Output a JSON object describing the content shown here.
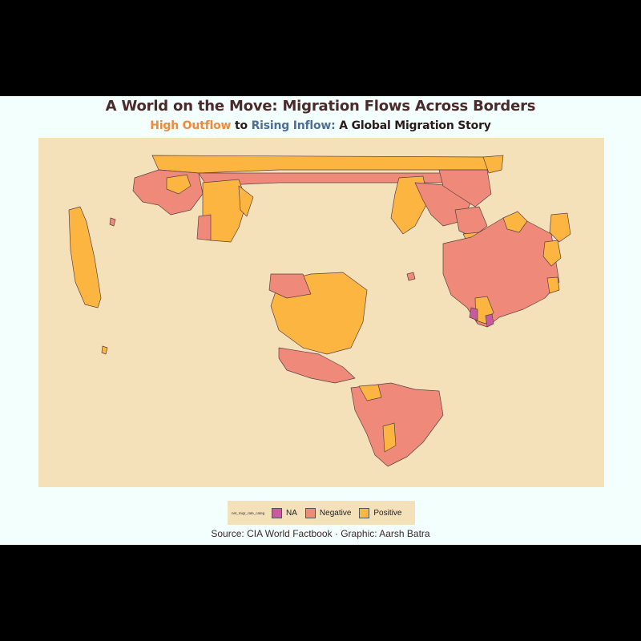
{
  "title": "A World on the Move: Migration Flows Across Borders",
  "subtitle": {
    "outflow_label": "High Outflow",
    "connector": "to",
    "inflow_label": "Rising Inflow:",
    "rest": "A Global Migration Story"
  },
  "legend": {
    "title": "net_migr_rate_categ",
    "items": [
      {
        "label": "NA",
        "color": "#c85aa0"
      },
      {
        "label": "Negative",
        "color": "#ef8a7a"
      },
      {
        "label": "Positive",
        "color": "#fbb540"
      }
    ]
  },
  "caption": "Source: CIA World Factbook · Graphic: Aarsh Batra",
  "colors": {
    "background": "#f3fffd",
    "panel": "#f5e1b9",
    "negative": "#ef8a7a",
    "positive": "#fbb540",
    "na": "#c85aa0",
    "border": "#5a4040"
  }
}
